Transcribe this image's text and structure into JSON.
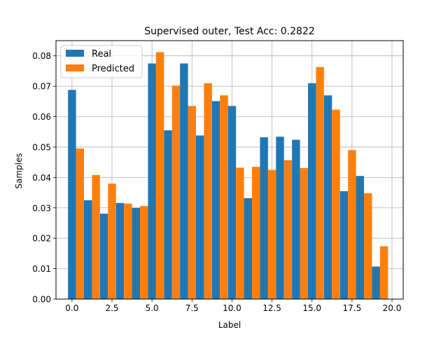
{
  "chart_data": {
    "type": "bar",
    "title": "Supervised outer, Test Acc: 0.2822",
    "xlabel": "Label",
    "ylabel": "Samples",
    "xlim": [
      -1.0,
      20.7
    ],
    "ylim": [
      0,
      0.085
    ],
    "grid": true,
    "legend_position": "top-left",
    "x_ticks": [
      0.0,
      2.5,
      5.0,
      7.5,
      10.0,
      12.5,
      15.0,
      17.5,
      20.0
    ],
    "x_tick_labels": [
      "0.0",
      "2.5",
      "5.0",
      "7.5",
      "10.0",
      "12.5",
      "15.0",
      "17.5",
      "20.0"
    ],
    "y_ticks": [
      0.0,
      0.01,
      0.02,
      0.03,
      0.04,
      0.05,
      0.06,
      0.07,
      0.08
    ],
    "y_tick_labels": [
      "0.00",
      "0.01",
      "0.02",
      "0.03",
      "0.04",
      "0.05",
      "0.06",
      "0.07",
      "0.08"
    ],
    "categories": [
      0,
      1,
      2,
      3,
      4,
      5,
      6,
      7,
      8,
      9,
      10,
      11,
      12,
      13,
      14,
      15,
      16,
      17,
      18,
      19
    ],
    "series": [
      {
        "name": "Real",
        "color": "#1f77b4",
        "values": [
          0.0688,
          0.0325,
          0.0281,
          0.0316,
          0.03,
          0.0775,
          0.0555,
          0.0775,
          0.0538,
          0.0651,
          0.0635,
          0.0332,
          0.0532,
          0.0534,
          0.0524,
          0.071,
          0.067,
          0.0355,
          0.0405,
          0.0107
        ]
      },
      {
        "name": "Predicted",
        "color": "#ff7f0e",
        "values": [
          0.0495,
          0.0408,
          0.038,
          0.0314,
          0.0306,
          0.0812,
          0.0702,
          0.0635,
          0.071,
          0.067,
          0.0432,
          0.0435,
          0.0425,
          0.0457,
          0.0431,
          0.0763,
          0.0623,
          0.049,
          0.0348,
          0.0174
        ]
      }
    ]
  }
}
